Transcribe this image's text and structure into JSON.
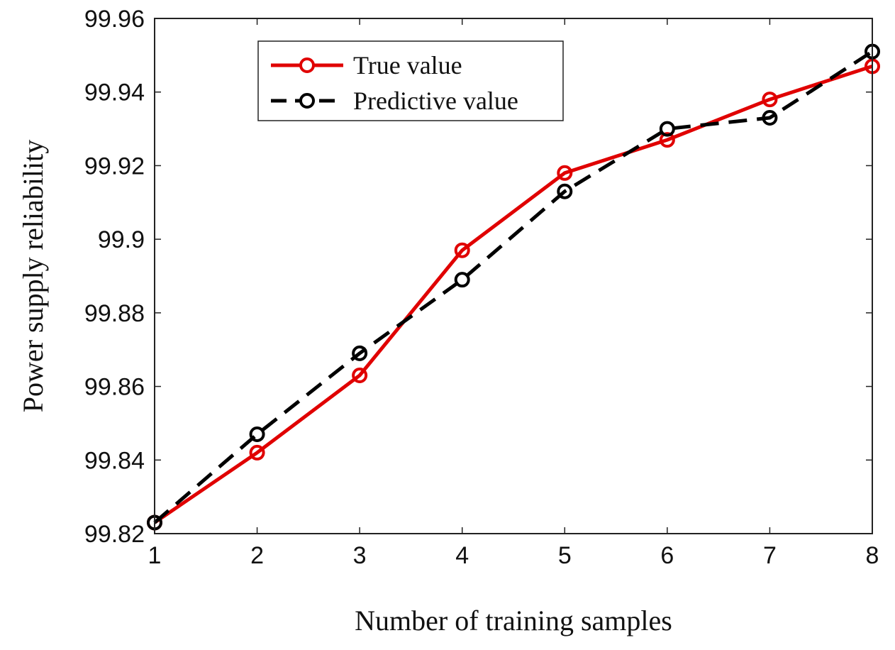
{
  "chart_data": {
    "type": "line",
    "title": "",
    "xlabel": "Number of training samples",
    "ylabel": "Power supply reliability",
    "x": [
      1,
      2,
      3,
      4,
      5,
      6,
      7,
      8
    ],
    "xlim": [
      1,
      8
    ],
    "ylim": [
      99.82,
      99.96
    ],
    "xticks": [
      1,
      2,
      3,
      4,
      5,
      6,
      7,
      8
    ],
    "xtick_labels": [
      "1",
      "2",
      "3",
      "4",
      "5",
      "6",
      "7",
      "8"
    ],
    "yticks": [
      99.82,
      99.84,
      99.86,
      99.88,
      99.9,
      99.92,
      99.94,
      99.96
    ],
    "ytick_labels": [
      "99.82",
      "99.84",
      "99.86",
      "99.88",
      "99.9",
      "99.92",
      "99.94",
      "99.96"
    ],
    "grid": false,
    "legend_position": "top-left",
    "series": [
      {
        "name": "True value",
        "color": "#e00000",
        "line_style": "solid",
        "marker": "circle",
        "values": [
          99.823,
          99.842,
          99.863,
          99.897,
          99.918,
          99.927,
          99.938,
          99.947
        ]
      },
      {
        "name": "Predictive value",
        "color": "#000000",
        "line_style": "dashed",
        "marker": "circle",
        "values": [
          99.823,
          99.847,
          99.869,
          99.889,
          99.913,
          99.93,
          99.933,
          99.951
        ]
      }
    ]
  }
}
